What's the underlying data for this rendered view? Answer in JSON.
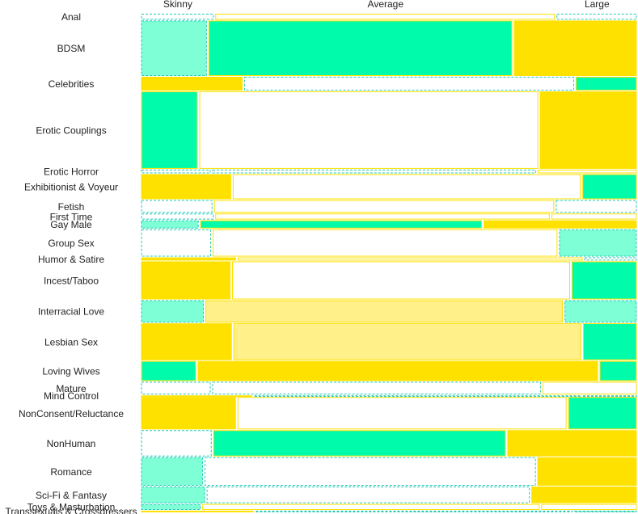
{
  "chart_data": {
    "type": "mosaic",
    "columns": [
      "Skinny",
      "Average",
      "Large"
    ],
    "categories": [
      "Anal",
      "BDSM",
      "Celebrities",
      "Erotic Couplings",
      "Erotic Horror",
      "Exhibitionist & Voyeur",
      "Fetish",
      "First Time",
      "Gay Male",
      "Group Sex",
      "Humor & Satire",
      "Incest/Taboo",
      "Interracial Love",
      "Lesbian Sex",
      "Loving Wives",
      "Mature",
      "Mind Control",
      "NonConsent/Reluctance",
      "NonHuman",
      "Romance",
      "Sci-Fi & Fantasy",
      "Toys & Masturbation",
      "Transsexuals & Crossdressers"
    ],
    "row_shares": [
      0.012,
      0.1,
      0.026,
      0.139,
      0.008,
      0.046,
      0.024,
      0.012,
      0.016,
      0.05,
      0.007,
      0.069,
      0.041,
      0.067,
      0.037,
      0.024,
      0.003,
      0.059,
      0.048,
      0.052,
      0.031,
      0.012,
      0.003
    ],
    "cells": [
      [
        {
          "share": 0.116,
          "fill": "none",
          "style": "dashed"
        },
        {
          "share": 0.533,
          "fill": "none",
          "style": "solid"
        },
        {
          "share": 0.128,
          "fill": "none",
          "style": "dashed"
        }
      ],
      [
        {
          "share": 0.105,
          "fill": "light-green",
          "style": "dashed"
        },
        {
          "share": 0.476,
          "fill": "green",
          "style": "solid"
        },
        {
          "share": 0.194,
          "fill": "yellow",
          "style": "solid"
        }
      ],
      [
        {
          "share": 0.161,
          "fill": "yellow",
          "style": "solid"
        },
        {
          "share": 0.518,
          "fill": "none",
          "style": "dashed"
        },
        {
          "share": 0.098,
          "fill": "green",
          "style": "solid"
        }
      ],
      [
        {
          "share": 0.091,
          "fill": "green",
          "style": "solid"
        },
        {
          "share": 0.532,
          "fill": "none",
          "style": "solid"
        },
        {
          "share": 0.154,
          "fill": "yellow",
          "style": "solid"
        }
      ],
      [
        {
          "share": 0.111,
          "fill": "none",
          "style": "dashed"
        },
        {
          "share": 0.508,
          "fill": "none",
          "style": "dashed"
        },
        {
          "share": 0.157,
          "fill": "none",
          "style": "solid"
        }
      ],
      [
        {
          "share": 0.144,
          "fill": "yellow",
          "style": "solid"
        },
        {
          "share": 0.549,
          "fill": "none",
          "style": "solid"
        },
        {
          "share": 0.088,
          "fill": "green",
          "style": "solid"
        }
      ],
      [
        {
          "share": 0.114,
          "fill": "none",
          "style": "dashed"
        },
        {
          "share": 0.534,
          "fill": "none",
          "style": "solid"
        },
        {
          "share": 0.129,
          "fill": "none",
          "style": "dashed"
        }
      ],
      [
        {
          "share": 0.116,
          "fill": "none",
          "style": "dashed"
        },
        {
          "share": 0.525,
          "fill": "none",
          "style": "solid"
        },
        {
          "share": 0.136,
          "fill": "none",
          "style": "solid"
        }
      ],
      [
        {
          "share": 0.093,
          "fill": "light-green",
          "style": "dashed"
        },
        {
          "share": 0.445,
          "fill": "green",
          "style": "solid"
        },
        {
          "share": 0.243,
          "fill": "yellow",
          "style": "solid"
        }
      ],
      [
        {
          "share": 0.112,
          "fill": "none",
          "style": "dashed"
        },
        {
          "share": 0.542,
          "fill": "none",
          "style": "solid"
        },
        {
          "share": 0.124,
          "fill": "light-green",
          "style": "dashed"
        }
      ],
      [
        {
          "share": 0.152,
          "fill": "yellow",
          "style": "solid"
        },
        {
          "share": 0.545,
          "fill": "none",
          "style": "solid"
        },
        {
          "share": 0.085,
          "fill": "none",
          "style": "dashed"
        }
      ],
      [
        {
          "share": 0.143,
          "fill": "yellow",
          "style": "solid"
        },
        {
          "share": 0.534,
          "fill": "none",
          "style": "solid"
        },
        {
          "share": 0.105,
          "fill": "green",
          "style": "solid"
        }
      ],
      [
        {
          "share": 0.101,
          "fill": "light-green",
          "style": "dashed"
        },
        {
          "share": 0.564,
          "fill": "light-yellow",
          "style": "solid"
        },
        {
          "share": 0.116,
          "fill": "light-green",
          "style": "dashed"
        }
      ],
      [
        {
          "share": 0.145,
          "fill": "yellow",
          "style": "solid"
        },
        {
          "share": 0.549,
          "fill": "light-yellow",
          "style": "solid"
        },
        {
          "share": 0.087,
          "fill": "green",
          "style": "solid"
        }
      ],
      [
        {
          "share": 0.089,
          "fill": "green",
          "style": "solid"
        },
        {
          "share": 0.632,
          "fill": "yellow",
          "style": "solid"
        },
        {
          "share": 0.061,
          "fill": "green",
          "style": "solid"
        }
      ],
      [
        {
          "share": 0.112,
          "fill": "none",
          "style": "dashed"
        },
        {
          "share": 0.52,
          "fill": "none",
          "style": "dashed"
        },
        {
          "share": 0.151,
          "fill": "none",
          "style": "solid"
        }
      ],
      [
        {
          "share": 0.178,
          "fill": "yellow",
          "style": "solid"
        },
        {
          "share": 0.52,
          "fill": "none",
          "style": "dashed"
        },
        {
          "share": 0.088,
          "fill": "none",
          "style": "dashed"
        }
      ],
      [
        {
          "share": 0.151,
          "fill": "yellow",
          "style": "solid"
        },
        {
          "share": 0.518,
          "fill": "none",
          "style": "solid"
        },
        {
          "share": 0.11,
          "fill": "green",
          "style": "solid"
        }
      ],
      [
        {
          "share": 0.114,
          "fill": "none",
          "style": "dashed"
        },
        {
          "share": 0.465,
          "fill": "green",
          "style": "solid"
        },
        {
          "share": 0.207,
          "fill": "yellow",
          "style": "solid"
        }
      ],
      [
        {
          "share": 0.1,
          "fill": "light-green",
          "style": "dashed"
        },
        {
          "share": 0.524,
          "fill": "none",
          "style": "dashed"
        },
        {
          "share": 0.159,
          "fill": "yellow",
          "style": "solid"
        }
      ],
      [
        {
          "share": 0.103,
          "fill": "light-green",
          "style": "dashed"
        },
        {
          "share": 0.51,
          "fill": "none",
          "style": "dashed"
        },
        {
          "share": 0.168,
          "fill": "yellow",
          "style": "solid"
        }
      ],
      [
        {
          "share": 0.097,
          "fill": "light-green",
          "style": "dashed"
        },
        {
          "share": 0.537,
          "fill": "none",
          "style": "solid"
        },
        {
          "share": 0.154,
          "fill": "none",
          "style": "solid"
        }
      ],
      [
        {
          "share": 0.181,
          "fill": "yellow",
          "style": "solid"
        },
        {
          "share": 0.505,
          "fill": "none",
          "style": "dashed"
        },
        {
          "share": 0.102,
          "fill": "light-green",
          "style": "dashed"
        }
      ]
    ]
  },
  "colors": {
    "green": "#00fcab",
    "light-green": "#7effd6",
    "yellow": "#ffe100",
    "light-yellow": "#fff08a",
    "none": "#ffffff",
    "solid_stroke": "#ffe100",
    "dashed_stroke": "#20c8b4"
  }
}
